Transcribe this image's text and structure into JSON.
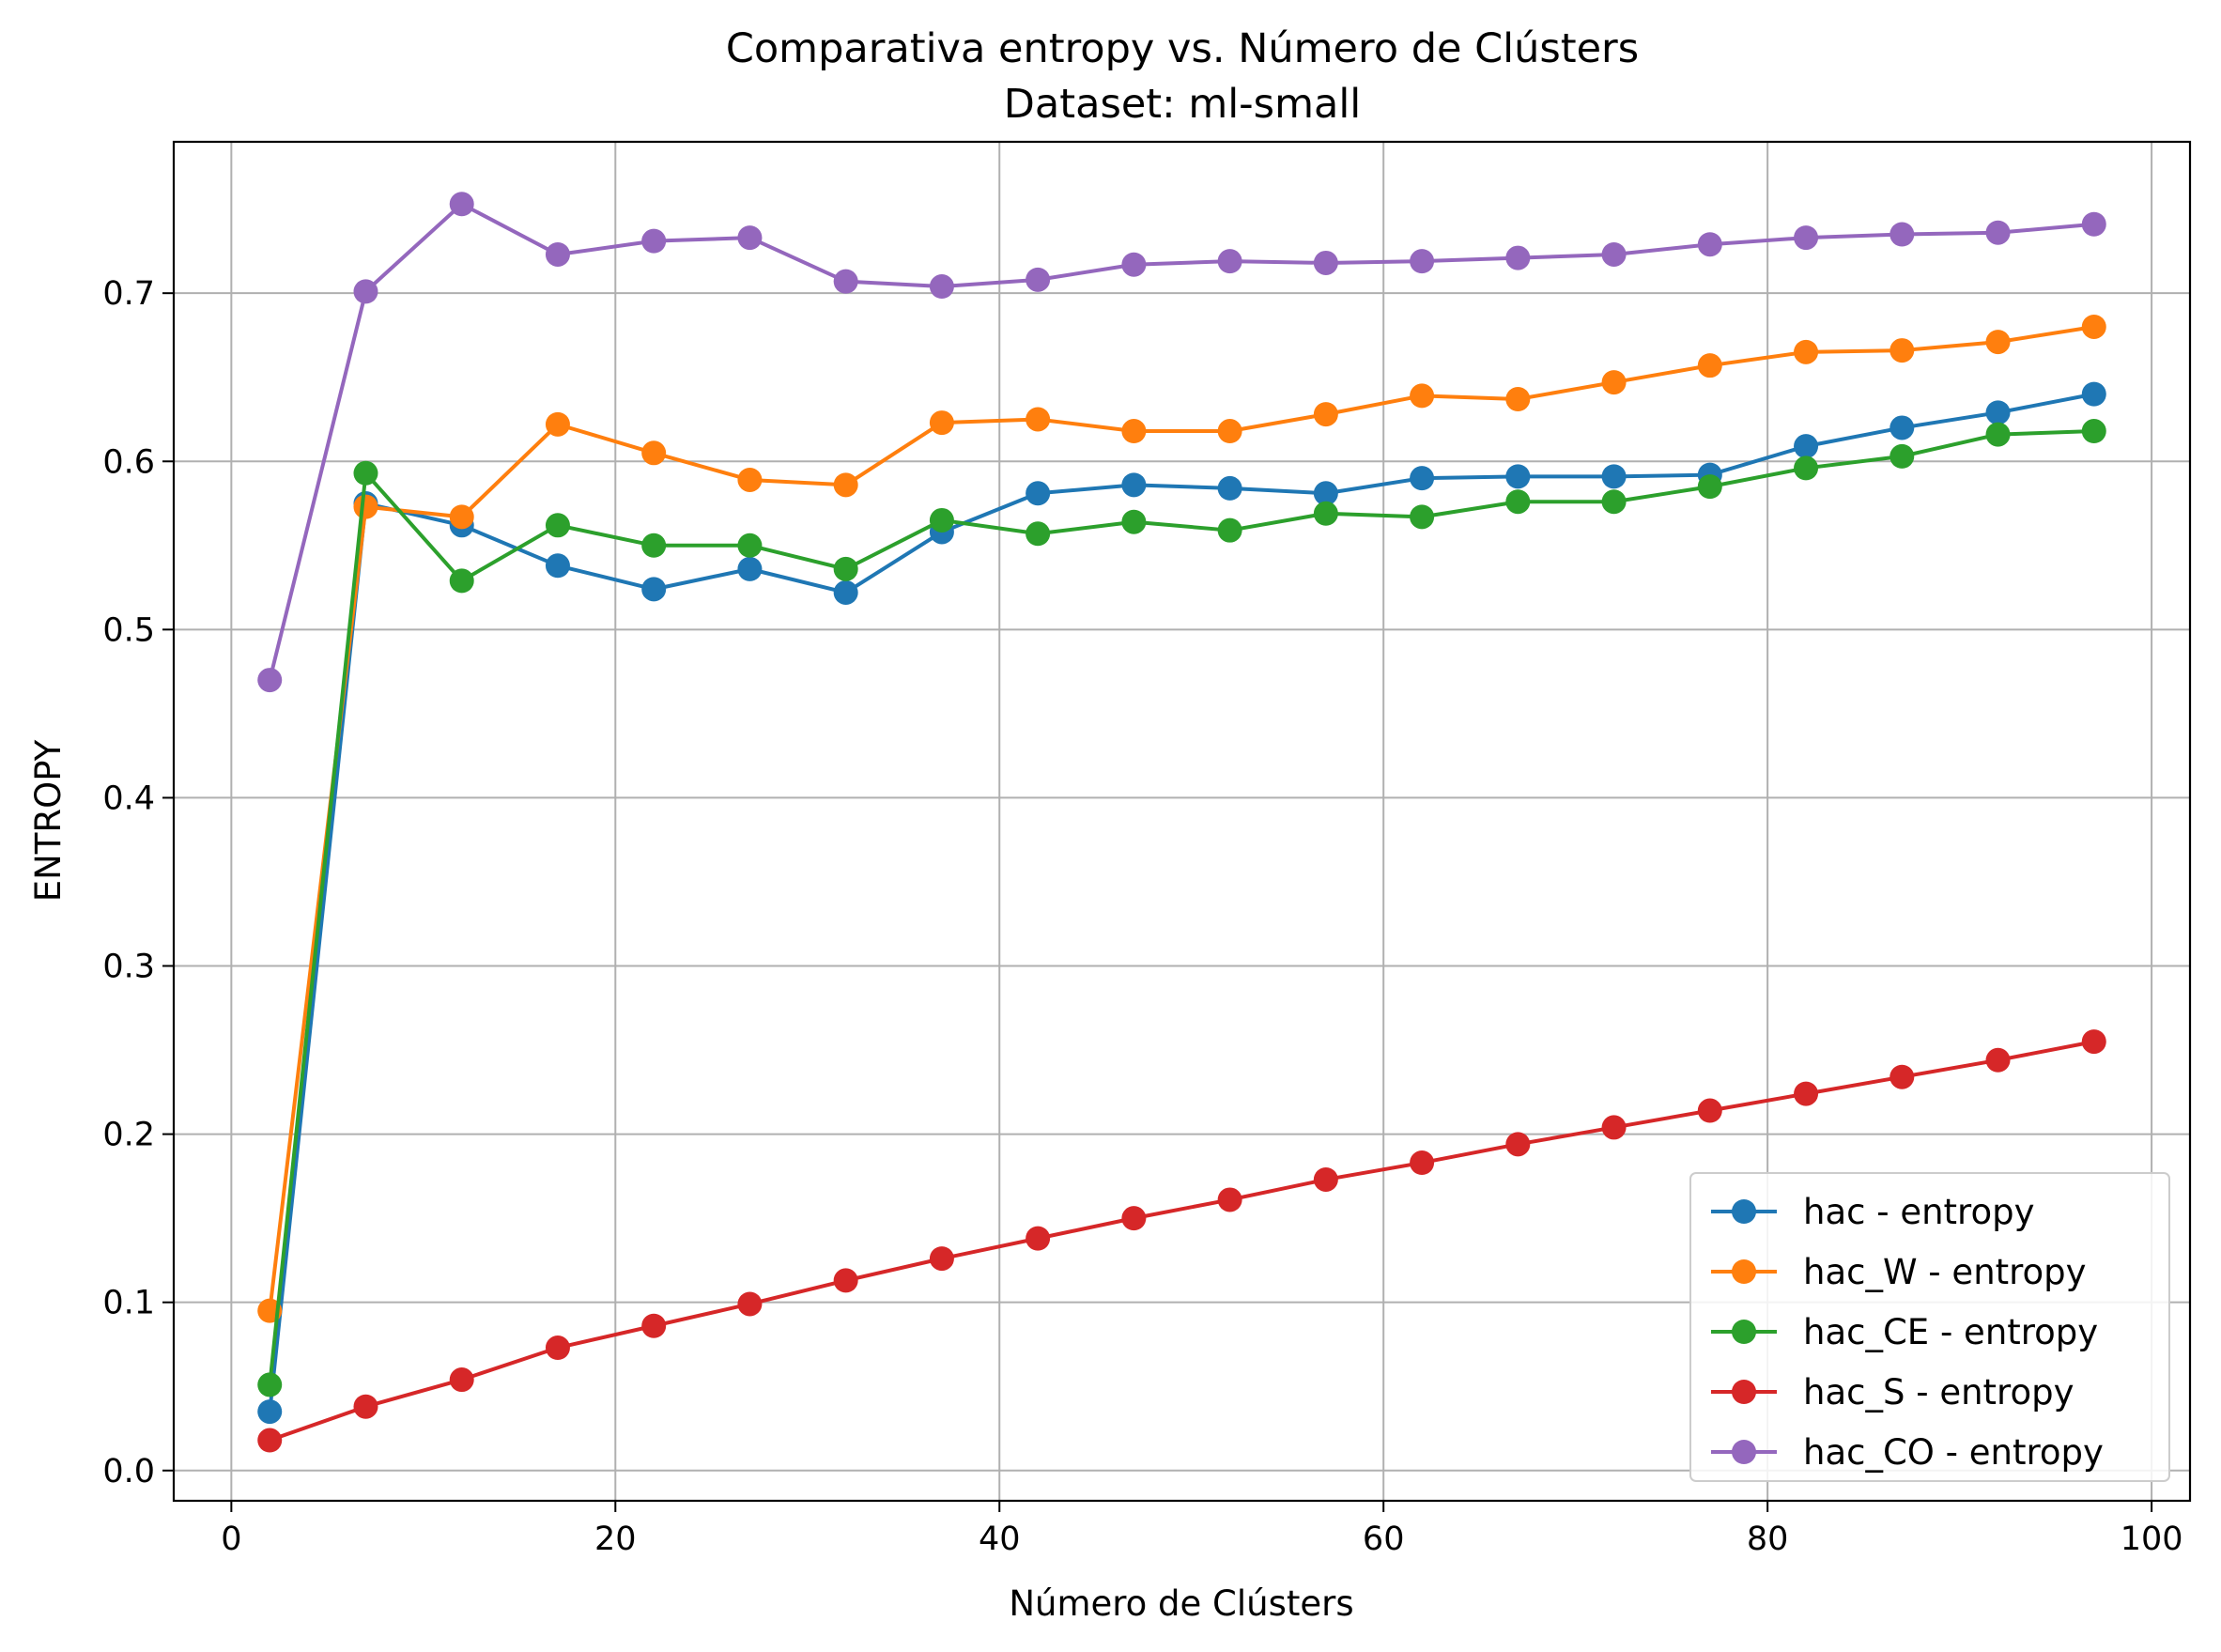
{
  "chart_data": {
    "type": "line",
    "title": "Comparativa entropy vs. Número de Clústers",
    "subtitle": "Dataset: ml-small",
    "xlabel": "Número de Clústers",
    "ylabel": "ENTROPY",
    "xlim": [
      -3,
      102
    ],
    "ylim": [
      -0.018,
      0.79
    ],
    "xticks": [
      0,
      20,
      40,
      60,
      80,
      100
    ],
    "yticks": [
      0.0,
      0.1,
      0.2,
      0.3,
      0.4,
      0.5,
      0.6,
      0.7
    ],
    "xtick_labels": [
      "0",
      "20",
      "40",
      "60",
      "80",
      "100"
    ],
    "ytick_labels": [
      "0.0",
      "0.1",
      "0.2",
      "0.3",
      "0.4",
      "0.5",
      "0.6",
      "0.7"
    ],
    "grid": true,
    "legend_position": "bottom-right",
    "x": [
      2,
      7,
      12,
      17,
      22,
      27,
      32,
      37,
      42,
      47,
      52,
      57,
      62,
      67,
      72,
      77,
      82,
      87,
      92,
      97
    ],
    "series": [
      {
        "name": "hac - entropy",
        "color": "#1f77b4",
        "values": [
          0.035,
          0.575,
          0.562,
          0.538,
          0.524,
          0.536,
          0.522,
          0.558,
          0.581,
          0.586,
          0.584,
          0.581,
          0.59,
          0.591,
          0.591,
          0.592,
          0.609,
          0.62,
          0.629,
          0.64
        ]
      },
      {
        "name": "hac_W - entropy",
        "color": "#ff7f0e",
        "values": [
          0.095,
          0.573,
          0.567,
          0.622,
          0.605,
          0.589,
          0.586,
          0.623,
          0.625,
          0.618,
          0.618,
          0.628,
          0.639,
          0.637,
          0.647,
          0.657,
          0.665,
          0.666,
          0.671,
          0.68
        ]
      },
      {
        "name": "hac_CE - entropy",
        "color": "#2ca02c",
        "values": [
          0.051,
          0.593,
          0.529,
          0.562,
          0.55,
          0.55,
          0.536,
          0.565,
          0.557,
          0.564,
          0.559,
          0.569,
          0.567,
          0.576,
          0.576,
          0.585,
          0.596,
          0.603,
          0.616,
          0.618
        ]
      },
      {
        "name": "hac_S - entropy",
        "color": "#d62728",
        "values": [
          0.018,
          0.038,
          0.054,
          0.073,
          0.086,
          0.099,
          0.113,
          0.126,
          0.138,
          0.15,
          0.161,
          0.173,
          0.183,
          0.194,
          0.204,
          0.214,
          0.224,
          0.234,
          0.244,
          0.255
        ]
      },
      {
        "name": "hac_CO - entropy",
        "color": "#9467bd",
        "values": [
          0.47,
          0.701,
          0.753,
          0.723,
          0.731,
          0.733,
          0.707,
          0.704,
          0.708,
          0.717,
          0.719,
          0.718,
          0.719,
          0.721,
          0.723,
          0.729,
          0.733,
          0.735,
          0.736,
          0.741
        ]
      }
    ]
  }
}
